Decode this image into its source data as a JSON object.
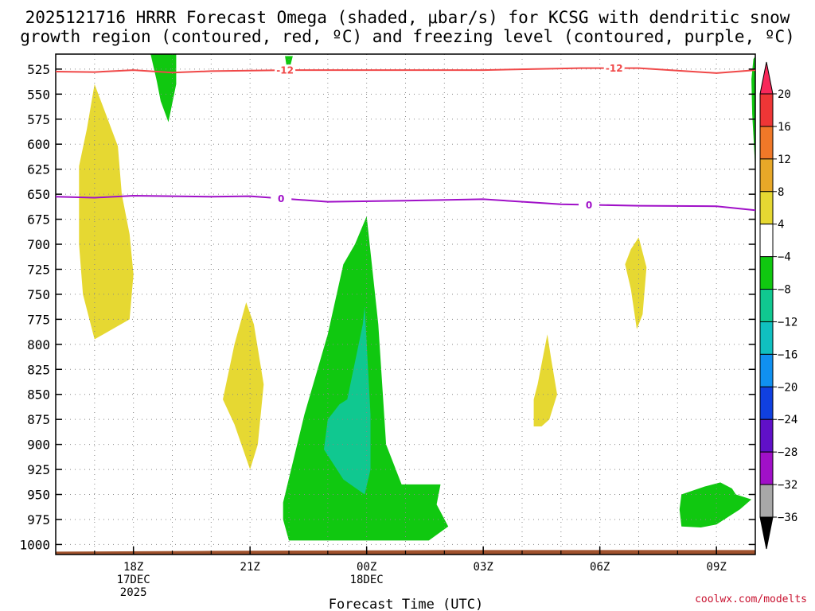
{
  "chart_data": {
    "type": "contour",
    "title_line1": "2025121716 HRRR Forecast Omega (shaded, μbar/s) for KCSG with dendritic snow",
    "title_line2": "growth region (contoured, red, ºC) and freezing level (contoured, purple, ºC)",
    "xlabel": "Forecast Time (UTC)",
    "x_ticks": [
      {
        "hour": 2,
        "lines": [
          "18Z",
          "17DEC",
          "2025"
        ]
      },
      {
        "hour": 5,
        "lines": [
          "21Z"
        ]
      },
      {
        "hour": 8,
        "lines": [
          "00Z",
          "18DEC"
        ]
      },
      {
        "hour": 11,
        "lines": [
          "03Z"
        ]
      },
      {
        "hour": 14,
        "lines": [
          "06Z"
        ]
      },
      {
        "hour": 17,
        "lines": [
          "09Z"
        ]
      }
    ],
    "xlim": [
      0,
      18
    ],
    "ylim": [
      1010,
      510
    ],
    "y_ticks": [
      "525",
      "550",
      "575",
      "600",
      "625",
      "650",
      "675",
      "700",
      "725",
      "750",
      "775",
      "800",
      "825",
      "850",
      "875",
      "900",
      "925",
      "950",
      "975",
      "1000"
    ],
    "colorbar": {
      "levels": [
        "20",
        "16",
        "12",
        "8",
        "4",
        "−4",
        "−8",
        "−12",
        "−16",
        "−20",
        "−24",
        "−28",
        "−32",
        "−36"
      ],
      "colors": [
        "#f8285a",
        "#ee3636",
        "#f07828",
        "#e8a828",
        "#e6d832",
        "#ffffff",
        "#10c810",
        "#10c890",
        "#10c0c0",
        "#1090f0",
        "#1040e0",
        "#6010c8",
        "#a010c8",
        "#a8a8a8",
        "#000000"
      ]
    },
    "contours": [
      {
        "name": "-12",
        "color": "#f04848",
        "label": "-12",
        "points": [
          [
            0,
            527.5
          ],
          [
            1,
            528
          ],
          [
            2,
            526
          ],
          [
            3,
            528.5
          ],
          [
            4,
            527
          ],
          [
            6,
            526
          ],
          [
            8,
            526
          ],
          [
            11,
            526
          ],
          [
            13.5,
            524
          ],
          [
            15,
            524
          ],
          [
            17,
            529
          ],
          [
            18,
            526
          ]
        ]
      },
      {
        "name": "0",
        "color": "#a010c8",
        "label": "0",
        "points": [
          [
            0,
            652.5
          ],
          [
            1,
            653.5
          ],
          [
            2,
            651.5
          ],
          [
            3,
            652
          ],
          [
            4,
            652.5
          ],
          [
            5,
            652
          ],
          [
            7,
            657.5
          ],
          [
            9,
            656.5
          ],
          [
            11,
            655
          ],
          [
            13,
            660
          ],
          [
            15,
            661.5
          ],
          [
            17,
            662
          ],
          [
            18,
            666
          ]
        ]
      }
    ],
    "omega_areas": [
      {
        "name": "snow-growth-upper",
        "color": "#e6d832",
        "points": [
          [
            0.6,
            622
          ],
          [
            0.8,
            585
          ],
          [
            1.0,
            540
          ],
          [
            1.6,
            602
          ],
          [
            1.7,
            650
          ],
          [
            1.9,
            690
          ],
          [
            2.0,
            730
          ],
          [
            1.9,
            775
          ],
          [
            1.0,
            795
          ],
          [
            0.7,
            750
          ],
          [
            0.6,
            700
          ]
        ]
      },
      {
        "name": "green-top-1",
        "color": "#10c810",
        "points": [
          [
            2.4,
            503
          ],
          [
            3.1,
            503
          ],
          [
            3.1,
            540
          ],
          [
            2.9,
            578
          ],
          [
            2.7,
            557
          ],
          [
            2.6,
            537
          ],
          [
            2.5,
            520
          ]
        ]
      },
      {
        "name": "green-top-2",
        "color": "#10c810",
        "points": [
          [
            6.0,
            512
          ],
          [
            6.1,
            512
          ],
          [
            6.0,
            527
          ],
          [
            5.95,
            525
          ],
          [
            5.9,
            512
          ]
        ]
      },
      {
        "name": "green-right-edge",
        "color": "#10c810",
        "points": [
          [
            17.95,
            515
          ],
          [
            18.0,
            512
          ],
          [
            18.0,
            625
          ],
          [
            17.92,
            570
          ],
          [
            17.9,
            535
          ]
        ]
      },
      {
        "name": "yellow-21z",
        "color": "#e6d832",
        "points": [
          [
            4.9,
            758
          ],
          [
            5.1,
            780
          ],
          [
            5.35,
            840
          ],
          [
            5.2,
            900
          ],
          [
            5.0,
            925
          ],
          [
            4.6,
            880
          ],
          [
            4.3,
            855
          ],
          [
            4.6,
            800
          ]
        ]
      },
      {
        "name": "green-00z-main",
        "color": "#10c810",
        "points": [
          [
            8.0,
            672
          ],
          [
            8.3,
            780
          ],
          [
            8.5,
            900
          ],
          [
            8.9,
            940
          ],
          [
            9.9,
            940
          ],
          [
            9.8,
            960
          ],
          [
            10.1,
            982
          ],
          [
            9.6,
            996
          ],
          [
            6.0,
            996
          ],
          [
            5.85,
            975
          ],
          [
            5.85,
            958
          ],
          [
            6.4,
            870
          ],
          [
            7.0,
            790
          ],
          [
            7.4,
            720
          ],
          [
            7.7,
            700
          ]
        ]
      },
      {
        "name": "teal-00z",
        "color": "#10c890",
        "points": [
          [
            7.95,
            762
          ],
          [
            8.1,
            870
          ],
          [
            8.1,
            925
          ],
          [
            7.95,
            950
          ],
          [
            7.4,
            935
          ],
          [
            6.9,
            905
          ],
          [
            7.0,
            875
          ],
          [
            7.3,
            860
          ],
          [
            7.5,
            855
          ],
          [
            7.9,
            780
          ]
        ]
      },
      {
        "name": "yellow-05z",
        "color": "#e6d832",
        "points": [
          [
            12.65,
            790
          ],
          [
            12.75,
            815
          ],
          [
            12.9,
            850
          ],
          [
            12.7,
            875
          ],
          [
            12.5,
            882
          ],
          [
            12.3,
            882
          ],
          [
            12.3,
            855
          ],
          [
            12.4,
            840
          ]
        ]
      },
      {
        "name": "yellow-07z",
        "color": "#e6d832",
        "points": [
          [
            15.0,
            693
          ],
          [
            15.2,
            723
          ],
          [
            15.1,
            770
          ],
          [
            14.95,
            785
          ],
          [
            14.8,
            745
          ],
          [
            14.65,
            720
          ],
          [
            14.8,
            705
          ]
        ]
      },
      {
        "name": "green-09z",
        "color": "#10c810",
        "points": [
          [
            16.1,
            950
          ],
          [
            16.7,
            942
          ],
          [
            17.1,
            938
          ],
          [
            17.4,
            944
          ],
          [
            17.5,
            950
          ],
          [
            17.9,
            955
          ],
          [
            17.6,
            965
          ],
          [
            17.0,
            980
          ],
          [
            16.6,
            983
          ],
          [
            16.1,
            982
          ],
          [
            16.05,
            965
          ]
        ]
      }
    ]
  },
  "credit": "coolwx.com/modelts"
}
